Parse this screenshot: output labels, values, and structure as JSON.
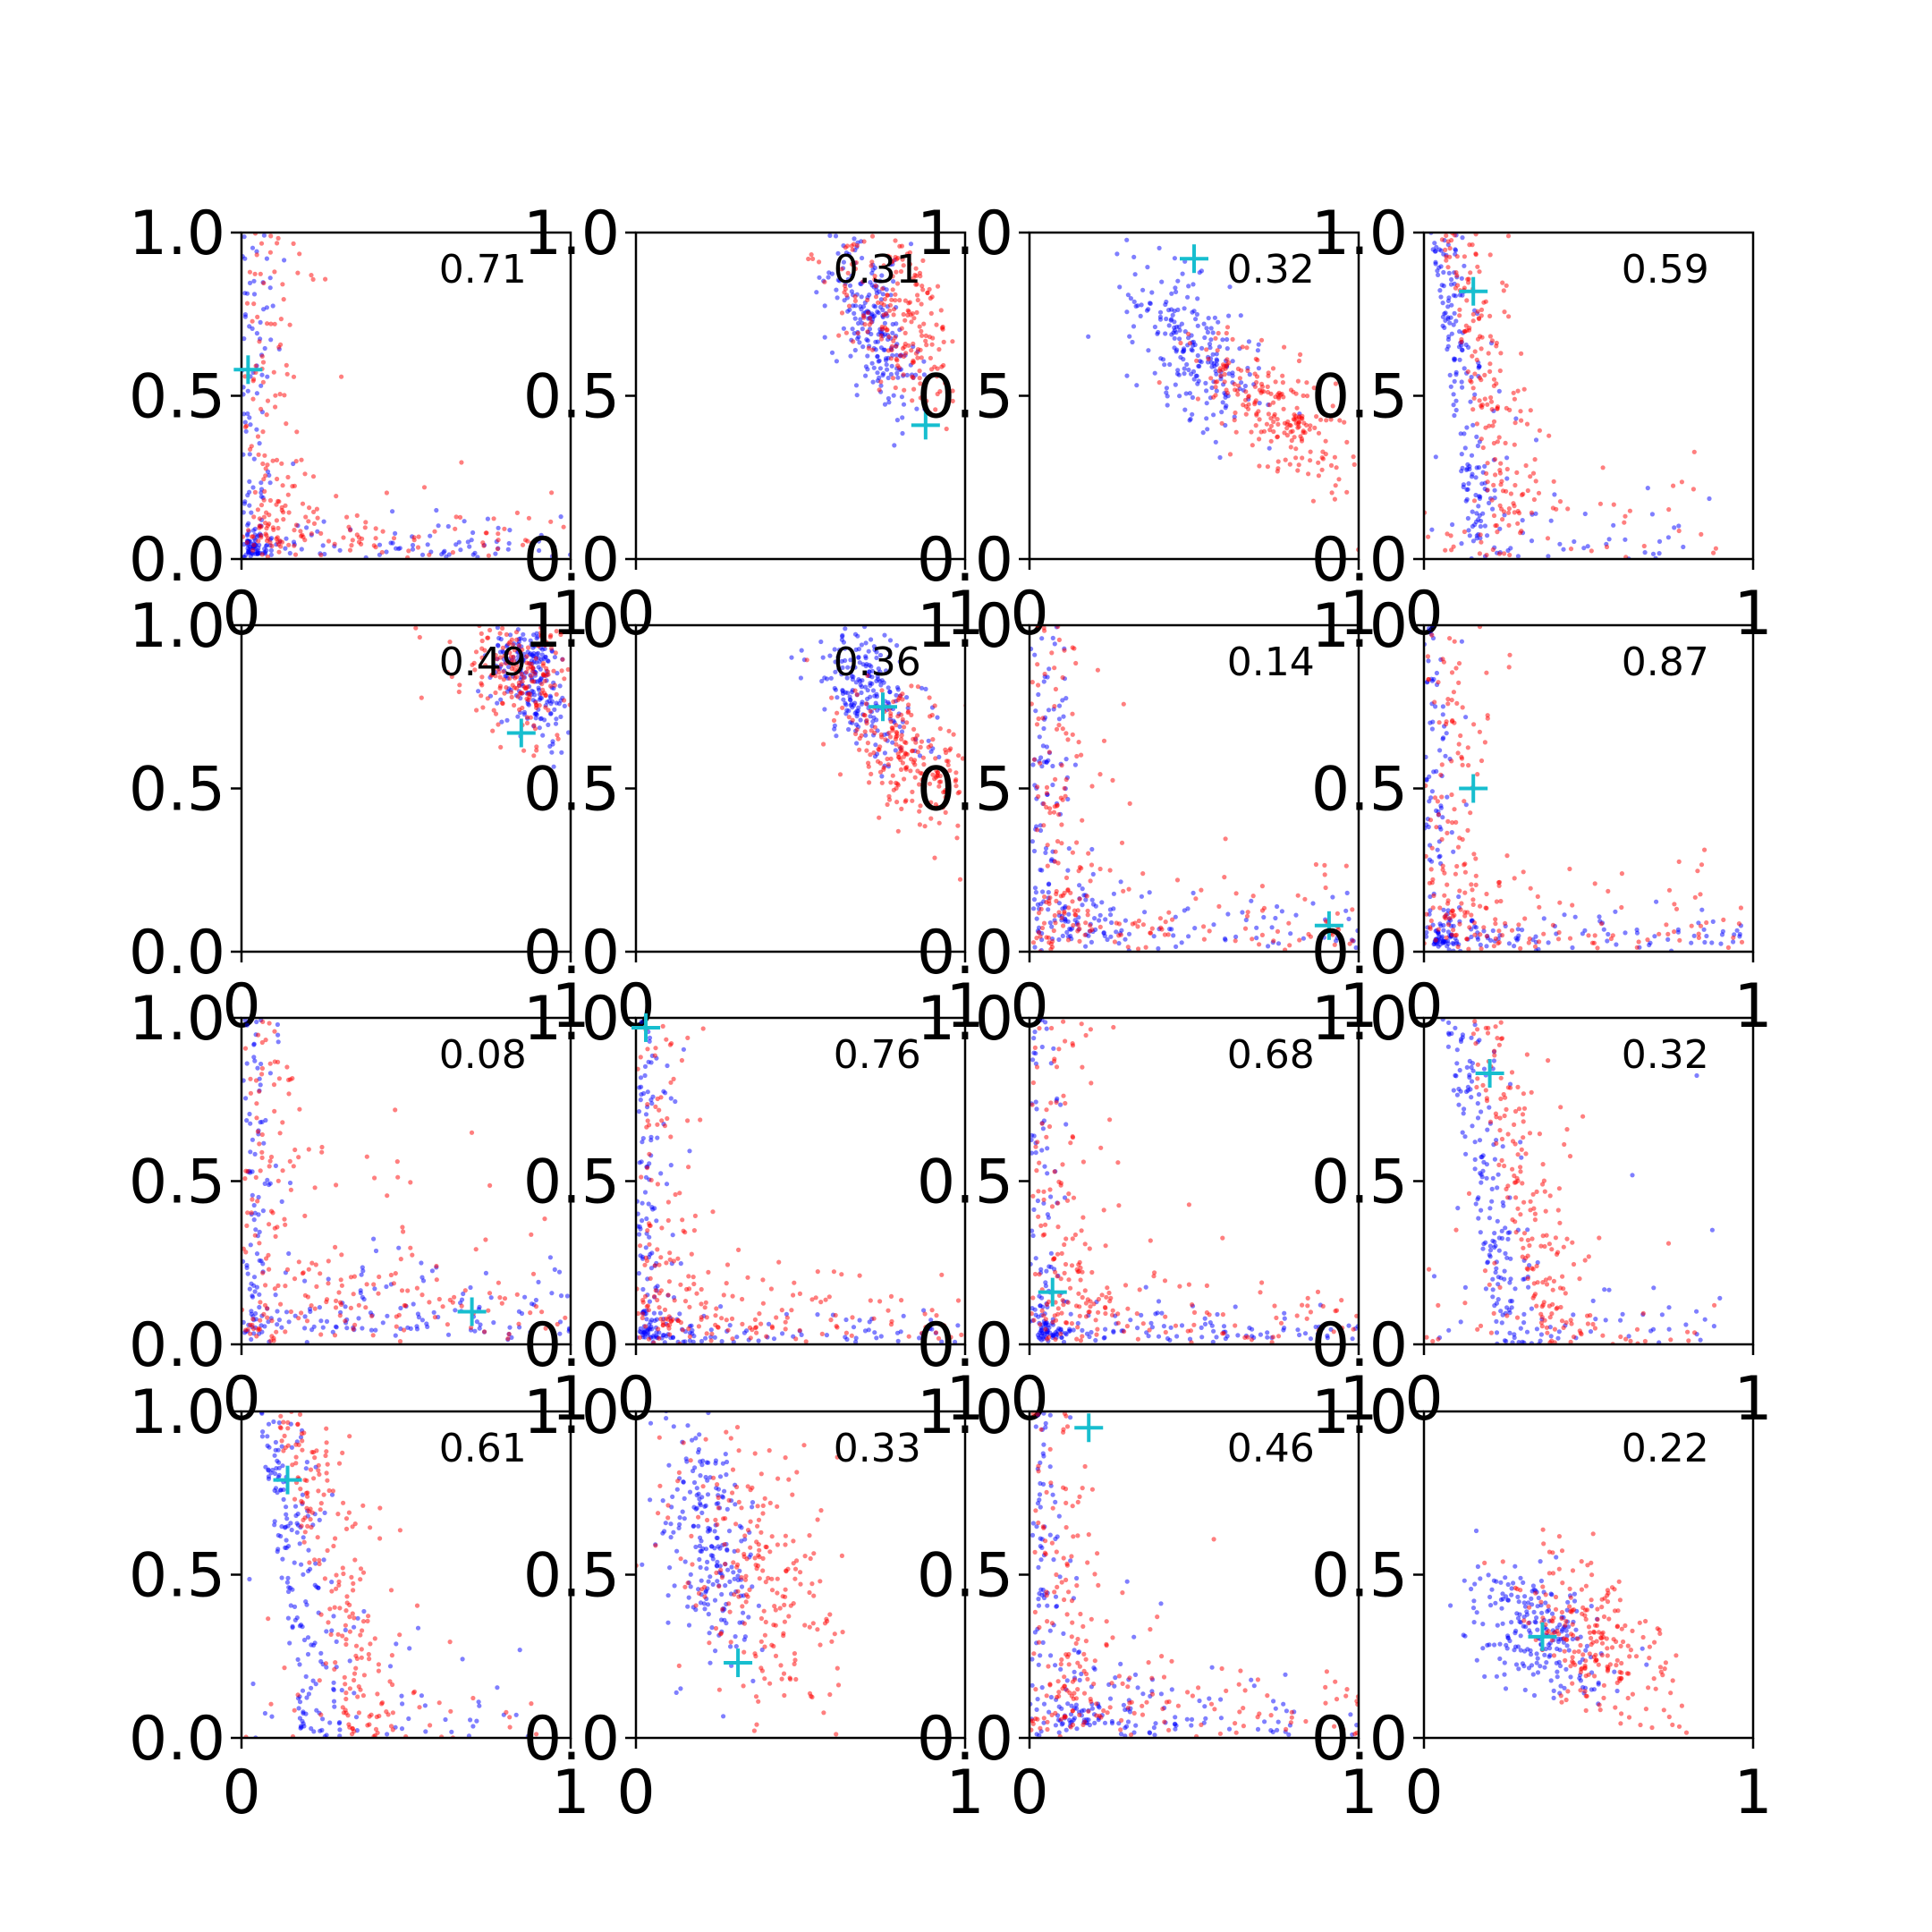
{
  "colors": {
    "series_a": "#0000ff",
    "series_b": "#ff0000",
    "marker": "#17becf"
  },
  "chart_data": {
    "type": "scatter",
    "layout": "4x4 grid",
    "xlim": [
      0,
      1
    ],
    "ylim": [
      0,
      1
    ],
    "xticks": [
      "0",
      "1"
    ],
    "yticks": [
      "0.0",
      "0.5",
      "1.0"
    ],
    "grid": false,
    "legend": "none",
    "series_names": [
      "blue points",
      "red points"
    ],
    "panels": [
      {
        "value": "0.71",
        "marker": [
          0.02,
          0.58
        ],
        "blue": {
          "shape": "L",
          "a": 0.03,
          "b": 0.03,
          "w": 0.05
        },
        "red": {
          "shape": "L",
          "a": 0.1,
          "b": 0.08,
          "w": 0.1
        }
      },
      {
        "value": "0.31",
        "marker": [
          0.88,
          0.41
        ],
        "blue": {
          "shape": "blob",
          "cx": 0.72,
          "cy": 0.72,
          "sx": 0.07,
          "sy": 0.14,
          "rho": -0.6
        },
        "red": {
          "shape": "blob",
          "cx": 0.8,
          "cy": 0.75,
          "sx": 0.1,
          "sy": 0.15,
          "rho": -0.5
        }
      },
      {
        "value": "0.32",
        "marker": [
          0.5,
          0.92
        ],
        "blue": {
          "shape": "blob",
          "cx": 0.5,
          "cy": 0.65,
          "sx": 0.1,
          "sy": 0.13,
          "rho": -0.6
        },
        "red": {
          "shape": "blob",
          "cx": 0.75,
          "cy": 0.45,
          "sx": 0.12,
          "sy": 0.12,
          "rho": -0.7
        }
      },
      {
        "value": "0.59",
        "marker": [
          0.15,
          0.82
        ],
        "blue": {
          "shape": "band",
          "a": 0.14,
          "b": 0.02,
          "w": 0.05
        },
        "red": {
          "shape": "band",
          "a": 0.2,
          "b": 0.05,
          "w": 0.08
        }
      },
      {
        "value": "0.49",
        "marker": [
          0.85,
          0.67
        ],
        "blue": {
          "shape": "blob",
          "cx": 0.88,
          "cy": 0.85,
          "sx": 0.06,
          "sy": 0.1,
          "rho": -0.4
        },
        "red": {
          "shape": "blob",
          "cx": 0.85,
          "cy": 0.85,
          "sx": 0.1,
          "sy": 0.1,
          "rho": -0.3
        }
      },
      {
        "value": "0.36",
        "marker": [
          0.75,
          0.75
        ],
        "blue": {
          "shape": "blob",
          "cx": 0.7,
          "cy": 0.8,
          "sx": 0.09,
          "sy": 0.11,
          "rho": -0.5
        },
        "red": {
          "shape": "blob",
          "cx": 0.82,
          "cy": 0.6,
          "sx": 0.1,
          "sy": 0.1,
          "rho": -0.5
        }
      },
      {
        "value": "0.14",
        "marker": [
          0.91,
          0.08
        ],
        "blue": {
          "shape": "L",
          "a": 0.2,
          "b": 0.08,
          "w": 0.06
        },
        "red": {
          "shape": "L",
          "a": 0.15,
          "b": 0.15,
          "w": 0.1
        }
      },
      {
        "value": "0.87",
        "marker": [
          0.15,
          0.5
        ],
        "blue": {
          "shape": "L",
          "a": 0.06,
          "b": 0.04,
          "w": 0.05
        },
        "red": {
          "shape": "L",
          "a": 0.12,
          "b": 0.1,
          "w": 0.09
        }
      },
      {
        "value": "0.08",
        "marker": [
          0.7,
          0.1
        ],
        "blue": {
          "shape": "L",
          "a": 0.4,
          "b": 0.08,
          "w": 0.05
        },
        "red": {
          "shape": "L",
          "a": 0.3,
          "b": 0.2,
          "w": 0.08
        }
      },
      {
        "value": "0.76",
        "marker": [
          0.03,
          0.97
        ],
        "blue": {
          "shape": "L",
          "a": 0.04,
          "b": 0.04,
          "w": 0.05
        },
        "red": {
          "shape": "L",
          "a": 0.12,
          "b": 0.1,
          "w": 0.09
        }
      },
      {
        "value": "0.68",
        "marker": [
          0.07,
          0.16
        ],
        "blue": {
          "shape": "L",
          "a": 0.05,
          "b": 0.04,
          "w": 0.05
        },
        "red": {
          "shape": "L",
          "a": 0.14,
          "b": 0.12,
          "w": 0.1
        }
      },
      {
        "value": "0.32",
        "marker": [
          0.2,
          0.83
        ],
        "blue": {
          "shape": "band",
          "a": 0.2,
          "b": 0.05,
          "w": 0.07
        },
        "red": {
          "shape": "band",
          "a": 0.3,
          "b": 0.1,
          "w": 0.1
        }
      },
      {
        "value": "0.61",
        "marker": [
          0.14,
          0.79
        ],
        "blue": {
          "shape": "band",
          "a": 0.15,
          "b": 0.05,
          "w": 0.07
        },
        "red": {
          "shape": "band",
          "a": 0.25,
          "b": 0.1,
          "w": 0.1
        }
      },
      {
        "value": "0.33",
        "marker": [
          0.31,
          0.23
        ],
        "blue": {
          "shape": "blob",
          "cx": 0.22,
          "cy": 0.62,
          "sx": 0.07,
          "sy": 0.2,
          "rho": -0.4
        },
        "red": {
          "shape": "blob",
          "cx": 0.38,
          "cy": 0.5,
          "sx": 0.13,
          "sy": 0.22,
          "rho": -0.3
        }
      },
      {
        "value": "0.46",
        "marker": [
          0.18,
          0.95
        ],
        "blue": {
          "shape": "L",
          "a": 0.15,
          "b": 0.07,
          "w": 0.06
        },
        "red": {
          "shape": "L",
          "a": 0.17,
          "b": 0.12,
          "w": 0.1
        }
      },
      {
        "value": "0.22",
        "marker": [
          0.36,
          0.31
        ],
        "blue": {
          "shape": "blob",
          "cx": 0.35,
          "cy": 0.32,
          "sx": 0.1,
          "sy": 0.1,
          "rho": -0.4
        },
        "red": {
          "shape": "blob",
          "cx": 0.52,
          "cy": 0.3,
          "sx": 0.12,
          "sy": 0.13,
          "rho": -0.5
        }
      }
    ]
  }
}
